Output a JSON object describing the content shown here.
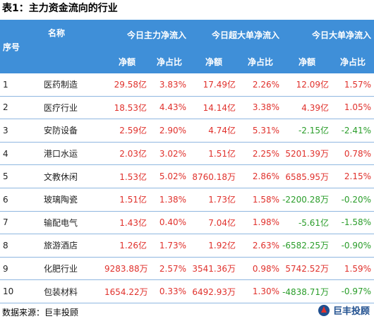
{
  "title": "表1：主力资金流向的行业",
  "header": {
    "col_index": "序号",
    "col_name": "名称",
    "group1": "今日主力净流入",
    "group2": "今日超大单净流入",
    "group3": "今日大单净流入",
    "net": "净额",
    "ratio": "净占比"
  },
  "rows": [
    {
      "idx": "1",
      "name": "医药制造",
      "m_net": "29.58亿",
      "m_ratio": "3.83%",
      "s_net": "17.49亿",
      "s_ratio": "2.26%",
      "l_net": "12.09亿",
      "l_ratio": "1.57%",
      "l_sign": "red",
      "lr_sign": "red"
    },
    {
      "idx": "2",
      "name": "医疗行业",
      "m_net": "18.53亿",
      "m_ratio": "4.43%",
      "s_net": "14.14亿",
      "s_ratio": "3.38%",
      "l_net": "4.39亿",
      "l_ratio": "1.05%",
      "l_sign": "red",
      "lr_sign": "red"
    },
    {
      "idx": "3",
      "name": "安防设备",
      "m_net": "2.59亿",
      "m_ratio": "2.90%",
      "s_net": "4.74亿",
      "s_ratio": "5.31%",
      "l_net": "-2.15亿",
      "l_ratio": "-2.41%",
      "l_sign": "green",
      "lr_sign": "green"
    },
    {
      "idx": "4",
      "name": "港口水运",
      "m_net": "2.03亿",
      "m_ratio": "3.02%",
      "s_net": "1.51亿",
      "s_ratio": "2.25%",
      "l_net": "5201.39万",
      "l_ratio": "0.78%",
      "l_sign": "red",
      "lr_sign": "red"
    },
    {
      "idx": "5",
      "name": "文教休闲",
      "m_net": "1.53亿",
      "m_ratio": "5.02%",
      "s_net": "8760.18万",
      "s_ratio": "2.86%",
      "l_net": "6585.95万",
      "l_ratio": "2.15%",
      "l_sign": "red",
      "lr_sign": "red"
    },
    {
      "idx": "6",
      "name": "玻璃陶瓷",
      "m_net": "1.51亿",
      "m_ratio": "1.38%",
      "s_net": "1.73亿",
      "s_ratio": "1.58%",
      "l_net": "-2200.28万",
      "l_ratio": "-0.20%",
      "l_sign": "green",
      "lr_sign": "green"
    },
    {
      "idx": "7",
      "name": "输配电气",
      "m_net": "1.43亿",
      "m_ratio": "0.40%",
      "s_net": "7.04亿",
      "s_ratio": "1.98%",
      "l_net": "-5.61亿",
      "l_ratio": "-1.58%",
      "l_sign": "green",
      "lr_sign": "green"
    },
    {
      "idx": "8",
      "name": "旅游酒店",
      "m_net": "1.26亿",
      "m_ratio": "1.73%",
      "s_net": "1.92亿",
      "s_ratio": "2.63%",
      "l_net": "-6582.25万",
      "l_ratio": "-0.90%",
      "l_sign": "green",
      "lr_sign": "green"
    },
    {
      "idx": "9",
      "name": "化肥行业",
      "m_net": "9283.88万",
      "m_ratio": "2.57%",
      "s_net": "3541.36万",
      "s_ratio": "0.98%",
      "l_net": "5742.52万",
      "l_ratio": "1.59%",
      "l_sign": "red",
      "lr_sign": "red"
    },
    {
      "idx": "10",
      "name": "包装材料",
      "m_net": "1654.22万",
      "m_ratio": "0.33%",
      "s_net": "6492.93万",
      "s_ratio": "1.30%",
      "l_net": "-4838.71万",
      "l_ratio": "-0.97%",
      "l_sign": "green",
      "lr_sign": "green"
    }
  ],
  "footer": "数据来源：巨丰投顾",
  "logo_text": "巨丰投顾",
  "colors": {
    "header_bg": "#3f8fd8",
    "positive": "#e0312c",
    "negative": "#2a9d2a"
  }
}
